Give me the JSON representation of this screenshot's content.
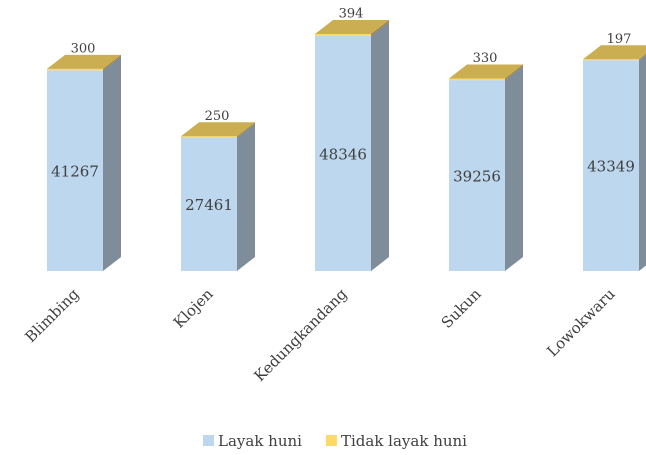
{
  "chart_data": {
    "type": "bar3d_stacked",
    "categories": [
      "Blimbing",
      "Klojen",
      "Kedungkandang",
      "Sukun",
      "Lowokwaru"
    ],
    "series": [
      {
        "name": "Layak huni",
        "color": "#bdd7ee",
        "values": [
          41267,
          27461,
          48346,
          39256,
          43349
        ]
      },
      {
        "name": "Tidak layak huni",
        "color": "#ffd966",
        "values": [
          300,
          250,
          394,
          330,
          197
        ]
      }
    ],
    "legend": "bottom"
  }
}
